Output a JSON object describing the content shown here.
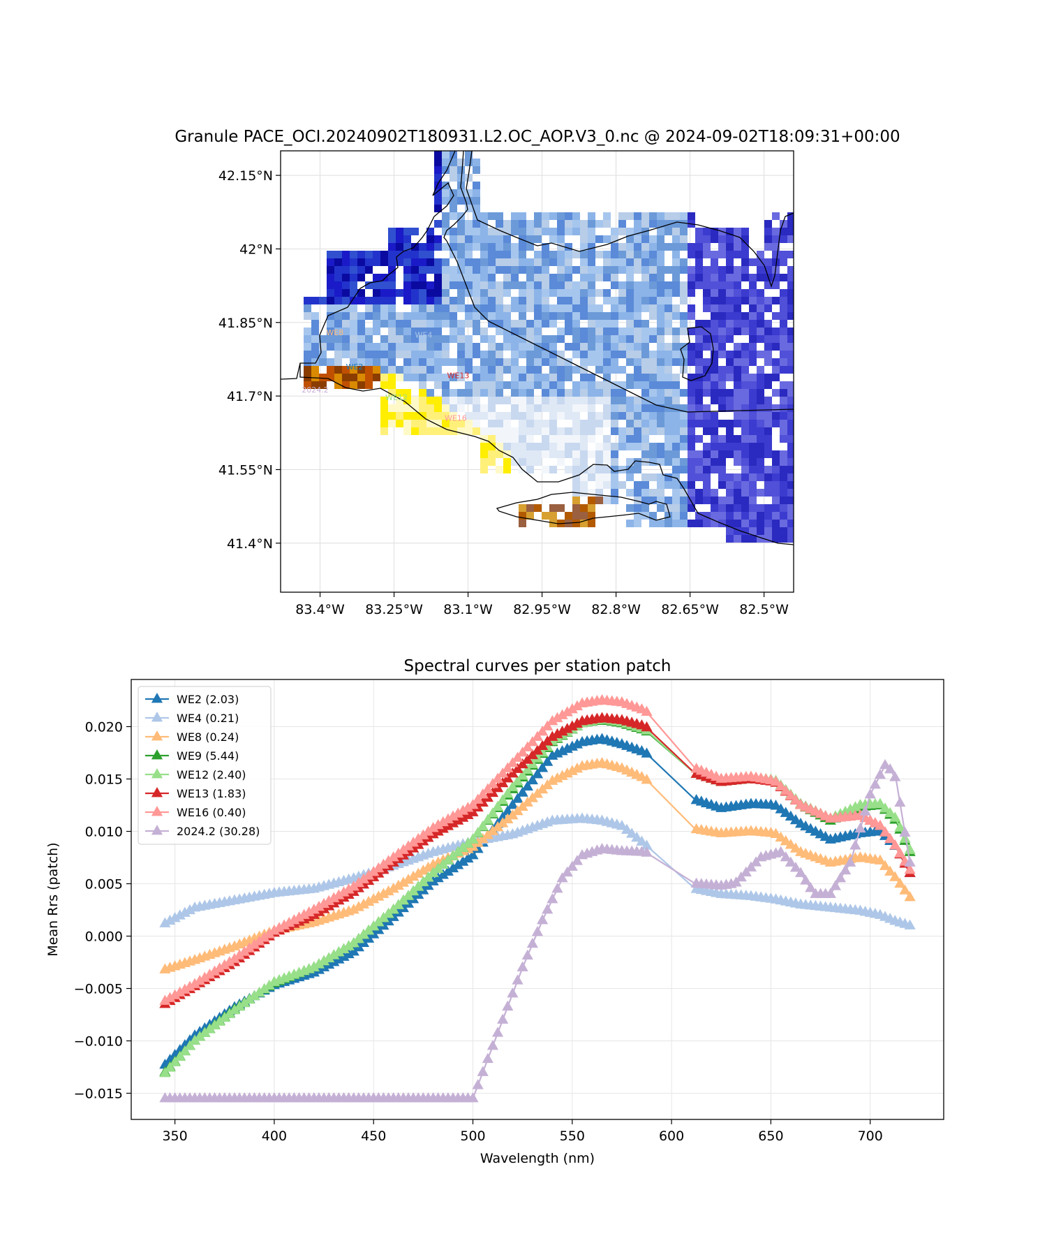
{
  "chart_data": [
    {
      "type": "heatmap",
      "title": "Granule PACE_OCI.20240902T180931.L2.OC_AOP.V3_0.nc @ 2024-09-02T18:09:31+00:00",
      "xlabel": "",
      "ylabel": "",
      "xlim": [
        -83.48,
        -82.44
      ],
      "ylim": [
        41.3,
        42.2
      ],
      "x_ticks": [
        -83.4,
        -83.25,
        -83.1,
        -82.95,
        -82.8,
        -82.65,
        -82.5
      ],
      "x_tick_labels": [
        "83.4°W",
        "83.25°W",
        "83.1°W",
        "82.95°W",
        "82.8°W",
        "82.65°W",
        "82.5°W"
      ],
      "y_ticks": [
        42.15,
        42.0,
        41.85,
        41.7,
        41.55,
        41.4
      ],
      "y_tick_labels": [
        "42.15°N",
        "42°N",
        "41.85°N",
        "41.7°N",
        "41.55°N",
        "41.4°N"
      ],
      "grid": true,
      "stations": [
        {
          "label": "WE8",
          "lon": -83.37,
          "lat": 41.83,
          "color": "#ffbb78"
        },
        {
          "label": "WE4",
          "lon": -83.19,
          "lat": 41.825,
          "color": "#aec7e8"
        },
        {
          "label": "WE2",
          "lon": -83.33,
          "lat": 41.76,
          "color": "#1f77b4"
        },
        {
          "label": "WE13",
          "lon": -83.12,
          "lat": 41.742,
          "color": "#d62728"
        },
        {
          "label": "2024.2",
          "lon": -83.41,
          "lat": 41.713,
          "color": "#c5b0d5"
        },
        {
          "label": "WE12",
          "lon": -83.245,
          "lat": 41.697,
          "color": "#98df8a"
        },
        {
          "label": "WE16",
          "lon": -83.125,
          "lat": 41.655,
          "color": "#ff9896"
        }
      ]
    },
    {
      "type": "line",
      "title": "Spectral curves per station patch",
      "xlabel": "Wavelength (nm)",
      "ylabel": "Mean Rrs (patch)",
      "xlim": [
        328,
        737
      ],
      "ylim": [
        -0.0175,
        0.0245
      ],
      "x_ticks": [
        350,
        400,
        450,
        500,
        550,
        600,
        650,
        700
      ],
      "y_ticks": [
        -0.015,
        -0.01,
        -0.005,
        0.0,
        0.005,
        0.01,
        0.015,
        0.02
      ],
      "y_tick_labels": [
        "−0.015",
        "−0.010",
        "−0.005",
        "0.000",
        "0.005",
        "0.010",
        "0.015",
        "0.020"
      ],
      "grid": true,
      "legend_position": "top-left",
      "series": [
        {
          "name": "WE2 (2.03)",
          "color": "#1f77b4",
          "points": [
            [
              345,
              -0.0123
            ],
            [
              360,
              -0.0095
            ],
            [
              380,
              -0.0068
            ],
            [
              400,
              -0.0047
            ],
            [
              420,
              -0.0035
            ],
            [
              440,
              -0.0015
            ],
            [
              460,
              0.0018
            ],
            [
              480,
              0.0052
            ],
            [
              500,
              0.0077
            ],
            [
              520,
              0.0125
            ],
            [
              540,
              0.0172
            ],
            [
              555,
              0.0185
            ],
            [
              565,
              0.0188
            ],
            [
              575,
              0.0183
            ],
            [
              587,
              0.0175
            ],
            [
              612,
              0.013
            ],
            [
              625,
              0.0122
            ],
            [
              640,
              0.0126
            ],
            [
              652,
              0.0125
            ],
            [
              665,
              0.0107
            ],
            [
              680,
              0.0092
            ],
            [
              695,
              0.0098
            ],
            [
              705,
              0.01
            ],
            [
              713,
              0.0085
            ],
            [
              720,
              0.006
            ]
          ]
        },
        {
          "name": "WE4 (0.21)",
          "color": "#aec7e8",
          "points": [
            [
              345,
              0.0012
            ],
            [
              360,
              0.0027
            ],
            [
              380,
              0.0034
            ],
            [
              400,
              0.0041
            ],
            [
              420,
              0.0045
            ],
            [
              440,
              0.0055
            ],
            [
              460,
              0.0067
            ],
            [
              480,
              0.008
            ],
            [
              500,
              0.009
            ],
            [
              520,
              0.0097
            ],
            [
              540,
              0.011
            ],
            [
              555,
              0.0112
            ],
            [
              565,
              0.011
            ],
            [
              575,
              0.0105
            ],
            [
              587,
              0.0087
            ],
            [
              612,
              0.0045
            ],
            [
              625,
              0.004
            ],
            [
              640,
              0.0038
            ],
            [
              652,
              0.0035
            ],
            [
              665,
              0.003
            ],
            [
              680,
              0.0027
            ],
            [
              695,
              0.0024
            ],
            [
              705,
              0.002
            ],
            [
              713,
              0.0014
            ],
            [
              720,
              0.001
            ]
          ]
        },
        {
          "name": "WE8 (0.24)",
          "color": "#ffbb78",
          "points": [
            [
              345,
              -0.0032
            ],
            [
              360,
              -0.0023
            ],
            [
              380,
              -0.001
            ],
            [
              400,
              0.0005
            ],
            [
              420,
              0.0013
            ],
            [
              440,
              0.0025
            ],
            [
              460,
              0.0045
            ],
            [
              480,
              0.0068
            ],
            [
              500,
              0.0085
            ],
            [
              520,
              0.0115
            ],
            [
              540,
              0.0148
            ],
            [
              555,
              0.0162
            ],
            [
              565,
              0.0165
            ],
            [
              575,
              0.016
            ],
            [
              587,
              0.015
            ],
            [
              612,
              0.0102
            ],
            [
              625,
              0.0098
            ],
            [
              640,
              0.01
            ],
            [
              652,
              0.0098
            ],
            [
              665,
              0.008
            ],
            [
              680,
              0.007
            ],
            [
              695,
              0.0075
            ],
            [
              705,
              0.0072
            ],
            [
              713,
              0.0055
            ],
            [
              720,
              0.0037
            ]
          ]
        },
        {
          "name": "WE9 (5.44)",
          "color": "#2ca02c",
          "points": [
            [
              345,
              -0.013
            ],
            [
              360,
              -0.01
            ],
            [
              380,
              -0.007
            ],
            [
              400,
              -0.0045
            ],
            [
              420,
              -0.003
            ],
            [
              440,
              -0.0007
            ],
            [
              460,
              0.0025
            ],
            [
              480,
              0.006
            ],
            [
              500,
              0.0092
            ],
            [
              520,
              0.014
            ],
            [
              540,
              0.0185
            ],
            [
              555,
              0.0203
            ],
            [
              565,
              0.0206
            ],
            [
              575,
              0.0203
            ],
            [
              587,
              0.0196
            ],
            [
              612,
              0.0155
            ],
            [
              625,
              0.0147
            ],
            [
              640,
              0.015
            ],
            [
              652,
              0.0148
            ],
            [
              665,
              0.0125
            ],
            [
              680,
              0.011
            ],
            [
              695,
              0.0123
            ],
            [
              705,
              0.0125
            ],
            [
              713,
              0.011
            ],
            [
              720,
              0.008
            ]
          ]
        },
        {
          "name": "WE12 (2.40)",
          "color": "#98df8a",
          "points": [
            [
              345,
              -0.0131
            ],
            [
              360,
              -0.01
            ],
            [
              380,
              -0.0071
            ],
            [
              400,
              -0.0044
            ],
            [
              420,
              -0.003
            ],
            [
              440,
              -0.0007
            ],
            [
              460,
              0.0025
            ],
            [
              480,
              0.006
            ],
            [
              500,
              0.0092
            ],
            [
              520,
              0.0142
            ],
            [
              540,
              0.0186
            ],
            [
              555,
              0.0203
            ],
            [
              565,
              0.0207
            ],
            [
              575,
              0.0204
            ],
            [
              587,
              0.0197
            ],
            [
              612,
              0.0155
            ],
            [
              625,
              0.0148
            ],
            [
              640,
              0.0151
            ],
            [
              652,
              0.0149
            ],
            [
              665,
              0.0126
            ],
            [
              680,
              0.0112
            ],
            [
              695,
              0.0125
            ],
            [
              705,
              0.0126
            ],
            [
              713,
              0.0112
            ],
            [
              720,
              0.0082
            ]
          ]
        },
        {
          "name": "WE13 (1.83)",
          "color": "#d62728",
          "points": [
            [
              345,
              -0.0065
            ],
            [
              360,
              -0.0048
            ],
            [
              380,
              -0.0025
            ],
            [
              400,
              0.0003
            ],
            [
              420,
              0.002
            ],
            [
              440,
              0.0042
            ],
            [
              460,
              0.007
            ],
            [
              480,
              0.0097
            ],
            [
              500,
              0.0118
            ],
            [
              520,
              0.0155
            ],
            [
              540,
              0.019
            ],
            [
              555,
              0.0205
            ],
            [
              565,
              0.0208
            ],
            [
              575,
              0.0206
            ],
            [
              587,
              0.02
            ],
            [
              612,
              0.0155
            ],
            [
              625,
              0.0147
            ],
            [
              640,
              0.015
            ],
            [
              652,
              0.0147
            ],
            [
              665,
              0.0125
            ],
            [
              680,
              0.0112
            ],
            [
              695,
              0.0115
            ],
            [
              705,
              0.0105
            ],
            [
              713,
              0.0085
            ],
            [
              720,
              0.006
            ]
          ]
        },
        {
          "name": "WE16 (0.40)",
          "color": "#ff9896",
          "points": [
            [
              345,
              -0.0062
            ],
            [
              360,
              -0.0046
            ],
            [
              380,
              -0.0022
            ],
            [
              400,
              0.0005
            ],
            [
              420,
              0.0025
            ],
            [
              440,
              0.0047
            ],
            [
              460,
              0.0075
            ],
            [
              480,
              0.0103
            ],
            [
              500,
              0.0125
            ],
            [
              520,
              0.0165
            ],
            [
              540,
              0.0205
            ],
            [
              555,
              0.0222
            ],
            [
              565,
              0.0225
            ],
            [
              575,
              0.0223
            ],
            [
              587,
              0.0215
            ],
            [
              612,
              0.016
            ],
            [
              625,
              0.015
            ],
            [
              640,
              0.0152
            ],
            [
              652,
              0.0148
            ],
            [
              665,
              0.0125
            ],
            [
              680,
              0.0112
            ],
            [
              695,
              0.0115
            ],
            [
              705,
              0.0105
            ],
            [
              713,
              0.0085
            ],
            [
              720,
              0.0063
            ]
          ]
        },
        {
          "name": "2024.2 (30.28)",
          "color": "#c5b0d5",
          "points": [
            [
              345,
              -0.0155
            ],
            [
              400,
              -0.0155
            ],
            [
              450,
              -0.0155
            ],
            [
              500,
              -0.0155
            ],
            [
              505,
              -0.013
            ],
            [
              515,
              -0.008
            ],
            [
              525,
              -0.003
            ],
            [
              535,
              0.0015
            ],
            [
              545,
              0.0055
            ],
            [
              555,
              0.0077
            ],
            [
              565,
              0.0083
            ],
            [
              575,
              0.0081
            ],
            [
              587,
              0.008
            ],
            [
              612,
              0.005
            ],
            [
              625,
              0.0048
            ],
            [
              632,
              0.005
            ],
            [
              645,
              0.0075
            ],
            [
              655,
              0.008
            ],
            [
              665,
              0.006
            ],
            [
              672,
              0.004
            ],
            [
              680,
              0.004
            ],
            [
              690,
              0.007
            ],
            [
              700,
              0.0135
            ],
            [
              708,
              0.0165
            ],
            [
              713,
              0.015
            ],
            [
              720,
              0.007
            ]
          ]
        }
      ]
    }
  ]
}
